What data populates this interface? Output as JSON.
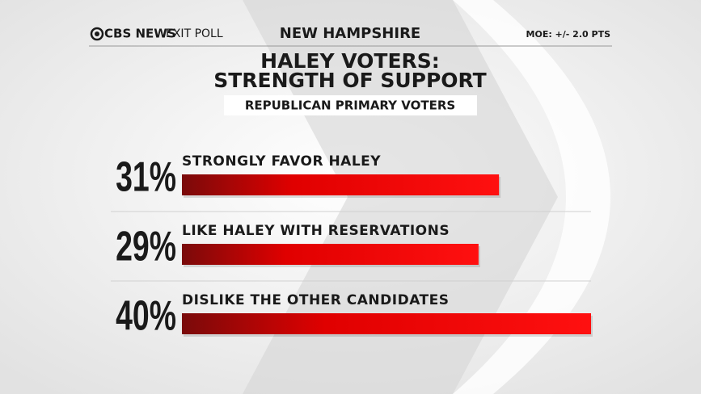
{
  "header": {
    "brand": "CBS NEWS",
    "brand_sub": "EXIT POLL",
    "region": "NEW HAMPSHIRE",
    "moe": "MOE: +/- 2.0 PTS"
  },
  "chart_data": {
    "type": "bar",
    "orientation": "horizontal",
    "title": "HALEY VOTERS:",
    "title_line2": "STRENGTH OF SUPPORT",
    "subtitle": "REPUBLICAN PRIMARY VOTERS",
    "categories": [
      "STRONGLY FAVOR HALEY",
      "LIKE HALEY WITH RESERVATIONS",
      "DISLIKE THE OTHER CANDIDATES"
    ],
    "values": [
      31,
      29,
      40
    ],
    "value_labels": [
      "31%",
      "29%",
      "40%"
    ],
    "color": "#e00000"
  }
}
